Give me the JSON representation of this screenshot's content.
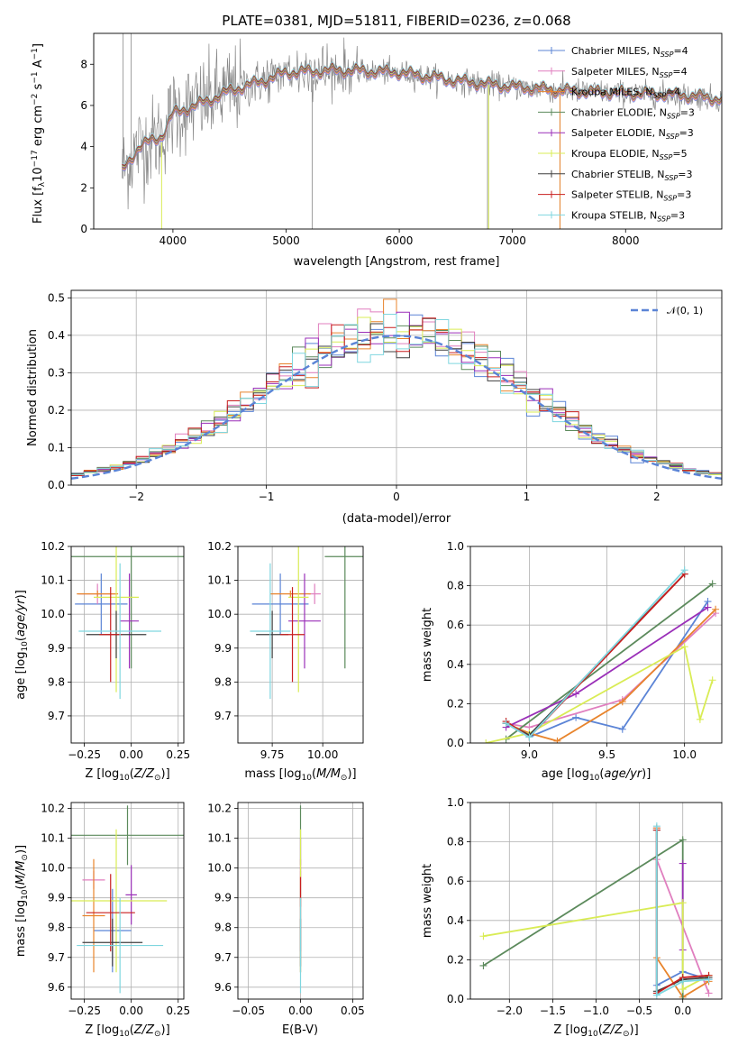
{
  "colors": {
    "Chabrier MILES": "#5b84d6",
    "Salpeter MILES": "#e07fbf",
    "Kroupa MILES": "#e8842c",
    "Chabrier ELODIE": "#5c8a5c",
    "Salpeter ELODIE": "#9a2fb8",
    "Kroupa ELODIE": "#d9ec55",
    "Chabrier STELIB": "#3f3f3f",
    "Salpeter STELIB": "#c81f1f",
    "Kroupa STELIB": "#7fd6df",
    "data": "#888888",
    "gauss": "#5b84d6"
  },
  "chart_data": [
    {
      "type": "line",
      "title": "PLATE=0381, MJD=51811, FIBERID=0236, z=0.068",
      "xlabel": "wavelength [Angstrom, rest frame]",
      "ylabel": "Flux [f_λ10^-17 erg cm^-2 s^-1 A^-1]",
      "xlim": [
        3300,
        8850
      ],
      "ylim": [
        0,
        9.5
      ],
      "xticks": [
        "4000",
        "5000",
        "6000",
        "7000",
        "8000"
      ],
      "yticks": [
        "0",
        "2",
        "4",
        "6",
        "8"
      ],
      "legend_position": "right",
      "legend": [
        {
          "name": "Chabrier MILES",
          "nssp": "4"
        },
        {
          "name": "Salpeter MILES",
          "nssp": "4"
        },
        {
          "name": "Kroupa MILES",
          "nssp": "4"
        },
        {
          "name": "Chabrier ELODIE",
          "nssp": "3"
        },
        {
          "name": "Salpeter ELODIE",
          "nssp": "3"
        },
        {
          "name": "Kroupa ELODIE",
          "nssp": "5"
        },
        {
          "name": "Chabrier STELIB",
          "nssp": "3"
        },
        {
          "name": "Salpeter STELIB",
          "nssp": "3"
        },
        {
          "name": "Kroupa STELIB",
          "nssp": "3"
        }
      ],
      "continuum_knots": [
        [
          3550,
          2.8
        ],
        [
          3700,
          4.0
        ],
        [
          3900,
          4.5
        ],
        [
          4000,
          5.6
        ],
        [
          4100,
          5.8
        ],
        [
          4300,
          6.2
        ],
        [
          4500,
          6.7
        ],
        [
          4800,
          7.2
        ],
        [
          5000,
          7.6
        ],
        [
          5500,
          7.7
        ],
        [
          6000,
          7.6
        ],
        [
          6500,
          7.2
        ],
        [
          7000,
          6.9
        ],
        [
          7500,
          6.7
        ],
        [
          8000,
          6.6
        ],
        [
          8500,
          6.5
        ],
        [
          8850,
          6.3
        ]
      ]
    },
    {
      "type": "step",
      "xlabel": "(data-model)/error",
      "ylabel": "Normed distribution",
      "xlim": [
        -2.5,
        2.5
      ],
      "ylim": [
        0,
        0.52
      ],
      "xticks": [
        "−2",
        "−1",
        "0",
        "1",
        "2"
      ],
      "yticks": [
        "0.0",
        "0.1",
        "0.2",
        "0.3",
        "0.4",
        "0.5"
      ],
      "legend": [
        {
          "name": "𝒩(0, 1)"
        }
      ],
      "legend_position": "top-right",
      "bin_width": 0.1
    },
    {
      "type": "scatter",
      "xlabel": "Z [log10(Z/Z⊙)]",
      "ylabel": "age  [log10(age/yr)]",
      "xlim": [
        -0.32,
        0.28
      ],
      "ylim": [
        9.62,
        10.2
      ],
      "xticks": [
        "−0.25",
        "0.00",
        "0.25"
      ],
      "yticks": [
        "9.7",
        "9.8",
        "9.9",
        "10.0",
        "10.1",
        "10.2"
      ],
      "points": [
        {
          "series": "Chabrier MILES",
          "x": -0.16,
          "xerr": 0.14,
          "y": 10.03,
          "yerr": 0.09
        },
        {
          "series": "Salpeter MILES",
          "x": -0.18,
          "xerr": 0.1,
          "y": 10.06,
          "yerr": 0.03
        },
        {
          "series": "Kroupa MILES",
          "x": -0.18,
          "xerr": 0.11,
          "y": 10.06,
          "yerr": 0.01
        },
        {
          "series": "Chabrier ELODIE",
          "x": 0.0,
          "xerr": 0.33,
          "y": 10.17,
          "yerr": 0.33
        },
        {
          "series": "Salpeter ELODIE",
          "x": -0.01,
          "xerr": 0.05,
          "y": 9.98,
          "yerr": 0.14
        },
        {
          "series": "Kroupa ELODIE",
          "x": -0.08,
          "xerr": 0.12,
          "y": 10.05,
          "yerr": 0.28
        },
        {
          "series": "Chabrier STELIB",
          "x": -0.08,
          "xerr": 0.16,
          "y": 9.94,
          "yerr": 0.07
        },
        {
          "series": "Salpeter STELIB",
          "x": -0.11,
          "xerr": 0.06,
          "y": 9.94,
          "yerr": 0.14
        },
        {
          "series": "Kroupa STELIB",
          "x": -0.06,
          "xerr": 0.22,
          "y": 9.95,
          "yerr": 0.2
        }
      ]
    },
    {
      "type": "scatter",
      "xlabel": "mass [log10(M/M⊙)]",
      "xlim": [
        9.58,
        10.2
      ],
      "ylim": [
        9.62,
        10.2
      ],
      "xticks": [
        "9.75",
        "10.00"
      ],
      "yticks": [
        "9.7",
        "9.8",
        "9.9",
        "10.0",
        "10.1",
        "10.2"
      ],
      "points": [
        {
          "series": "Chabrier MILES",
          "x": 9.79,
          "xerr": 0.14,
          "y": 10.03,
          "yerr": 0.09
        },
        {
          "series": "Salpeter MILES",
          "x": 9.96,
          "xerr": 0.03,
          "y": 10.06,
          "yerr": 0.03
        },
        {
          "series": "Kroupa MILES",
          "x": 9.84,
          "xerr": 0.1,
          "y": 10.06,
          "yerr": 0.01
        },
        {
          "series": "Chabrier ELODIE",
          "x": 10.11,
          "xerr": 0.1,
          "y": 10.17,
          "yerr": 0.33
        },
        {
          "series": "Salpeter ELODIE",
          "x": 9.91,
          "xerr": 0.08,
          "y": 9.98,
          "yerr": 0.14
        },
        {
          "series": "Kroupa ELODIE",
          "x": 9.88,
          "xerr": 0.05,
          "y": 10.05,
          "yerr": 0.28
        },
        {
          "series": "Chabrier STELIB",
          "x": 9.75,
          "xerr": 0.08,
          "y": 9.94,
          "yerr": 0.07
        },
        {
          "series": "Salpeter STELIB",
          "x": 9.85,
          "xerr": 0.06,
          "y": 9.94,
          "yerr": 0.14
        },
        {
          "series": "Kroupa STELIB",
          "x": 9.74,
          "xerr": 0.1,
          "y": 9.95,
          "yerr": 0.2
        }
      ]
    },
    {
      "type": "line",
      "xlabel": "age  [log10(age/yr)]",
      "ylabel": "mass weight",
      "xlim": [
        8.62,
        10.24
      ],
      "ylim": [
        0,
        1.0
      ],
      "xticks": [
        "9.0",
        "9.5",
        "10.0"
      ],
      "yticks": [
        "0.0",
        "0.2",
        "0.4",
        "0.6",
        "0.8",
        "1.0"
      ],
      "series": [
        {
          "name": "Chabrier MILES",
          "x": [
            8.85,
            9.0,
            9.3,
            9.6,
            10.15
          ],
          "y": [
            0.1,
            0.03,
            0.13,
            0.07,
            0.72
          ]
        },
        {
          "name": "Salpeter MILES",
          "x": [
            8.85,
            9.0,
            9.6,
            10.2
          ],
          "y": [
            0.1,
            0.08,
            0.22,
            0.66
          ]
        },
        {
          "name": "Kroupa MILES",
          "x": [
            8.85,
            9.0,
            9.18,
            9.6,
            10.2
          ],
          "y": [
            0.1,
            0.05,
            0.01,
            0.21,
            0.68
          ]
        },
        {
          "name": "Chabrier ELODIE",
          "x": [
            8.85,
            10.18
          ],
          "y": [
            0.02,
            0.81
          ]
        },
        {
          "name": "Salpeter ELODIE",
          "x": [
            8.85,
            9.3,
            10.15
          ],
          "y": [
            0.08,
            0.25,
            0.69
          ]
        },
        {
          "name": "Kroupa ELODIE",
          "x": [
            8.72,
            9.0,
            10.0,
            10.1,
            10.18
          ],
          "y": [
            0.0,
            0.05,
            0.49,
            0.12,
            0.32
          ]
        },
        {
          "name": "Chabrier STELIB",
          "x": [
            8.85,
            9.0,
            10.0
          ],
          "y": [
            0.1,
            0.04,
            0.86
          ]
        },
        {
          "name": "Salpeter STELIB",
          "x": [
            8.85,
            9.0,
            10.0
          ],
          "y": [
            0.11,
            0.03,
            0.86
          ]
        },
        {
          "name": "Kroupa STELIB",
          "x": [
            8.85,
            9.0,
            10.0
          ],
          "y": [
            0.1,
            0.03,
            0.88
          ]
        }
      ]
    },
    {
      "type": "scatter",
      "xlabel": "Z [log10(Z/Z⊙)]",
      "ylabel": "mass [log10(M/M⊙)]",
      "xlim": [
        -0.32,
        0.28
      ],
      "ylim": [
        9.56,
        10.22
      ],
      "xticks": [
        "−0.25",
        "0.00",
        "0.25"
      ],
      "yticks": [
        "9.6",
        "9.7",
        "9.8",
        "9.9",
        "10.0",
        "10.1",
        "10.2"
      ],
      "points": [
        {
          "series": "Chabrier MILES",
          "x": -0.1,
          "xerr": 0.1,
          "y": 9.79,
          "yerr": 0.14
        },
        {
          "series": "Salpeter MILES",
          "x": -0.2,
          "xerr": 0.06,
          "y": 9.96,
          "yerr": 0.03
        },
        {
          "series": "Kroupa MILES",
          "x": -0.2,
          "xerr": 0.06,
          "y": 9.84,
          "yerr": 0.19
        },
        {
          "series": "Chabrier ELODIE",
          "x": -0.02,
          "xerr": 0.3,
          "y": 10.11,
          "yerr": 0.1
        },
        {
          "series": "Salpeter ELODIE",
          "x": 0.0,
          "xerr": 0.03,
          "y": 9.91,
          "yerr": 0.1
        },
        {
          "series": "Kroupa ELODIE",
          "x": -0.08,
          "xerr": 0.27,
          "y": 9.89,
          "yerr": 0.24
        },
        {
          "series": "Chabrier STELIB",
          "x": -0.1,
          "xerr": 0.16,
          "y": 9.75,
          "yerr": 0.08
        },
        {
          "series": "Salpeter STELIB",
          "x": -0.11,
          "xerr": 0.13,
          "y": 9.85,
          "yerr": 0.13
        },
        {
          "series": "Kroupa STELIB",
          "x": -0.06,
          "xerr": 0.23,
          "y": 9.74,
          "yerr": 0.16
        }
      ]
    },
    {
      "type": "scatter",
      "xlabel": "E(B-V)",
      "xlim": [
        -0.06,
        0.06
      ],
      "ylim": [
        9.56,
        10.22
      ],
      "xticks": [
        "−0.05",
        "0.00",
        "0.05"
      ],
      "yticks": [
        "9.6",
        "9.7",
        "9.8",
        "9.9",
        "10.0",
        "10.1",
        "10.2"
      ],
      "points": [
        {
          "series": "Chabrier MILES",
          "x": 0.0,
          "xerr": 0.0,
          "y": 9.79,
          "yerr": 0.14
        },
        {
          "series": "Salpeter MILES",
          "x": 0.0,
          "xerr": 0.0,
          "y": 9.96,
          "yerr": 0.03
        },
        {
          "series": "Kroupa MILES",
          "x": 0.0,
          "xerr": 0.0,
          "y": 9.84,
          "yerr": 0.19
        },
        {
          "series": "Chabrier ELODIE",
          "x": 0.0,
          "xerr": 0.0,
          "y": 10.11,
          "yerr": 0.1
        },
        {
          "series": "Salpeter ELODIE",
          "x": 0.0,
          "xerr": 0.0,
          "y": 9.91,
          "yerr": 0.19
        },
        {
          "series": "Kroupa ELODIE",
          "x": 0.0,
          "xerr": 0.0,
          "y": 9.89,
          "yerr": 0.24
        },
        {
          "series": "Chabrier STELIB",
          "x": 0.0,
          "xerr": 0.0,
          "y": 9.75,
          "yerr": 0.08
        },
        {
          "series": "Salpeter STELIB",
          "x": 0.0,
          "xerr": 0.0,
          "y": 9.92,
          "yerr": 0.05
        },
        {
          "series": "Kroupa STELIB",
          "x": 0.0,
          "xerr": 0.0,
          "y": 9.74,
          "yerr": 0.16
        }
      ]
    },
    {
      "type": "line",
      "xlabel": "Z [log10(Z/Z⊙)]",
      "ylabel": "mass weight",
      "xlim": [
        -2.45,
        0.45
      ],
      "ylim": [
        0,
        1.0
      ],
      "xticks": [
        "−2.0",
        "−1.5",
        "−1.0",
        "−0.5",
        "0.0"
      ],
      "yticks": [
        "0.0",
        "0.2",
        "0.4",
        "0.6",
        "0.8",
        "1.0"
      ],
      "series": [
        {
          "name": "Chabrier MILES",
          "x": [
            -0.3,
            -0.3,
            0.0,
            0.3
          ],
          "y": [
            0.87,
            0.07,
            0.14,
            0.1
          ]
        },
        {
          "name": "Salpeter MILES",
          "x": [
            -0.3,
            -0.3,
            0.3
          ],
          "y": [
            0.87,
            0.71,
            0.03
          ]
        },
        {
          "name": "Kroupa MILES",
          "x": [
            -0.3,
            -0.3,
            0.0,
            0.3
          ],
          "y": [
            0.87,
            0.21,
            0.01,
            0.09
          ]
        },
        {
          "name": "Chabrier ELODIE",
          "x": [
            -2.3,
            0.0,
            0.0
          ],
          "y": [
            0.17,
            0.81,
            0.0
          ]
        },
        {
          "name": "Salpeter ELODIE",
          "x": [
            0.0,
            0.0
          ],
          "y": [
            0.69,
            0.25
          ]
        },
        {
          "name": "Kroupa ELODIE",
          "x": [
            -2.3,
            0.0,
            0.0,
            0.3
          ],
          "y": [
            0.32,
            0.49,
            0.05,
            0.12
          ]
        },
        {
          "name": "Chabrier STELIB",
          "x": [
            -0.3,
            -0.3,
            0.0,
            0.3
          ],
          "y": [
            0.86,
            0.04,
            0.1,
            0.11
          ]
        },
        {
          "name": "Salpeter STELIB",
          "x": [
            -0.3,
            -0.3,
            0.0,
            0.3
          ],
          "y": [
            0.86,
            0.03,
            0.11,
            0.12
          ]
        },
        {
          "name": "Kroupa STELIB",
          "x": [
            -0.3,
            -0.3,
            0.0,
            0.3
          ],
          "y": [
            0.88,
            0.02,
            0.09,
            0.1
          ]
        }
      ]
    }
  ]
}
